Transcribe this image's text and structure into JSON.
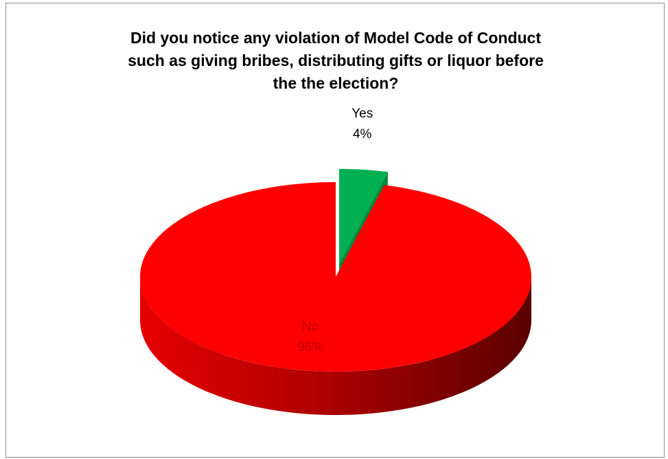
{
  "chart_data": {
    "type": "pie",
    "title": "Did you notice any violation of Model Code of Conduct\nsuch as giving bribes, distributing gifts or liquor before\nthe the election?",
    "legend": "none",
    "slices": [
      {
        "label": "Yes",
        "percent": "4%",
        "value": 4,
        "color": "#00b050",
        "dark": "#008a3c",
        "label_color": "#000000",
        "exploded": true
      },
      {
        "label": "No",
        "percent": "96%",
        "value": 96,
        "color": "#ff0000",
        "dark": "#a80000",
        "label_color": "#c00000",
        "exploded": false
      }
    ]
  }
}
